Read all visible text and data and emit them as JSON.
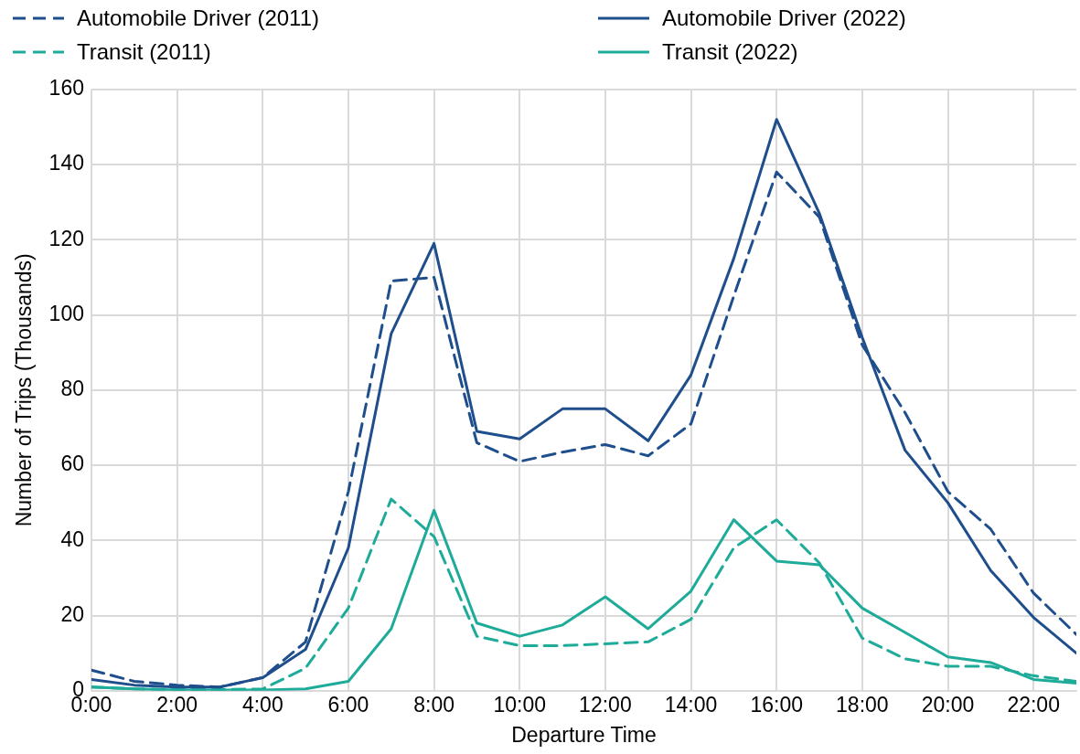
{
  "chart_data": {
    "type": "line",
    "xlabel": "Departure Time",
    "ylabel": "Number of Trips (Thousands)",
    "x": [
      0,
      1,
      2,
      3,
      4,
      5,
      6,
      7,
      8,
      9,
      10,
      11,
      12,
      13,
      14,
      15,
      16,
      17,
      18,
      19,
      20,
      21,
      22,
      23
    ],
    "series": [
      {
        "name": "Automobile Driver (2011)",
        "color": "#1f4e8c",
        "line_style": "dashed",
        "values": [
          5.5,
          2.5,
          1.5,
          1,
          3.5,
          13,
          53,
          109,
          110,
          66,
          61,
          63.5,
          65.5,
          62.5,
          71,
          105,
          138,
          126,
          92,
          74,
          53,
          43,
          26,
          15
        ]
      },
      {
        "name": "Automobile Driver (2022)",
        "color": "#1f4e8c",
        "line_style": "solid",
        "values": [
          3,
          1.5,
          1,
          1,
          3.5,
          11,
          38,
          95,
          119,
          69,
          67,
          75,
          75,
          66.5,
          84,
          115,
          152,
          127,
          94,
          64,
          50,
          32,
          19.5,
          10
        ]
      },
      {
        "name": "Transit (2011)",
        "color": "#1eab99",
        "line_style": "dashed",
        "values": [
          1,
          0.5,
          0.3,
          0.3,
          0.5,
          6,
          22,
          51,
          41,
          14.5,
          12,
          12,
          12.5,
          13,
          19,
          38,
          45.5,
          34,
          14,
          8.5,
          6.5,
          6.5,
          4,
          2.5
        ]
      },
      {
        "name": "Transit (2022)",
        "color": "#1eab99",
        "line_style": "solid",
        "values": [
          1,
          0.5,
          0.2,
          0.2,
          0.2,
          0.5,
          2.5,
          16.5,
          48,
          18,
          14.5,
          17.5,
          25,
          16.5,
          26.5,
          45.5,
          34.5,
          33.5,
          22,
          15.5,
          9,
          7.5,
          3,
          2
        ]
      }
    ],
    "xlim": [
      0,
      23
    ],
    "xticks": [
      {
        "value": 0,
        "label": "0:00"
      },
      {
        "value": 2,
        "label": "2:00"
      },
      {
        "value": 4,
        "label": "4:00"
      },
      {
        "value": 6,
        "label": "6:00"
      },
      {
        "value": 8,
        "label": "8:00"
      },
      {
        "value": 10,
        "label": "10:00"
      },
      {
        "value": 12,
        "label": "12:00"
      },
      {
        "value": 14,
        "label": "14:00"
      },
      {
        "value": 16,
        "label": "16:00"
      },
      {
        "value": 18,
        "label": "18:00"
      },
      {
        "value": 20,
        "label": "20:00"
      },
      {
        "value": 22,
        "label": "22:00"
      }
    ],
    "ylim": [
      0,
      160
    ],
    "yticks": [
      0,
      20,
      40,
      60,
      80,
      100,
      120,
      140,
      160
    ],
    "grid": true,
    "legend": "top",
    "marker": "none"
  }
}
